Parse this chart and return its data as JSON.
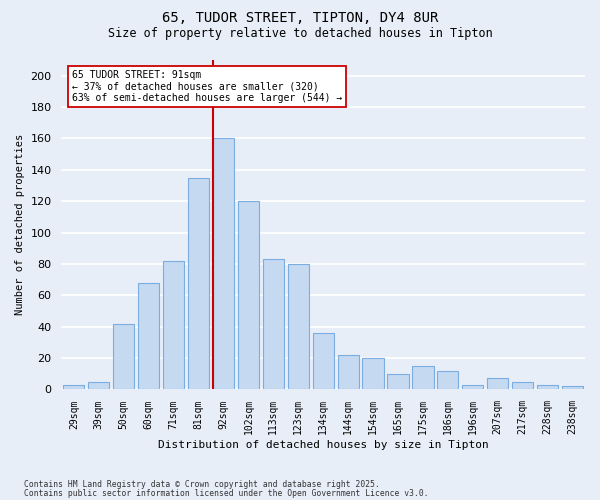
{
  "title1": "65, TUDOR STREET, TIPTON, DY4 8UR",
  "title2": "Size of property relative to detached houses in Tipton",
  "xlabel": "Distribution of detached houses by size in Tipton",
  "ylabel": "Number of detached properties",
  "labels": [
    "29sqm",
    "39sqm",
    "50sqm",
    "60sqm",
    "71sqm",
    "81sqm",
    "92sqm",
    "102sqm",
    "113sqm",
    "123sqm",
    "134sqm",
    "144sqm",
    "154sqm",
    "165sqm",
    "175sqm",
    "186sqm",
    "196sqm",
    "207sqm",
    "217sqm",
    "228sqm",
    "238sqm"
  ],
  "values": [
    3,
    5,
    42,
    68,
    82,
    135,
    160,
    120,
    83,
    80,
    36,
    22,
    20,
    10,
    15,
    12,
    3,
    7,
    5,
    3,
    2
  ],
  "bar_color": "#c5d9f1",
  "bar_edge_color": "#7aade0",
  "vline_color": "#cc0000",
  "vline_index": 6,
  "annotation_line1": "65 TUDOR STREET: 91sqm",
  "annotation_line2": "← 37% of detached houses are smaller (320)",
  "annotation_line3": "63% of semi-detached houses are larger (544) →",
  "annotation_box_facecolor": "#ffffff",
  "annotation_box_edgecolor": "#cc0000",
  "bg_color": "#e8eef8",
  "grid_color": "#ffffff",
  "ylim_max": 210,
  "yticks": [
    0,
    20,
    40,
    60,
    80,
    100,
    120,
    140,
    160,
    180,
    200
  ],
  "footer1": "Contains HM Land Registry data © Crown copyright and database right 2025.",
  "footer2": "Contains public sector information licensed under the Open Government Licence v3.0."
}
